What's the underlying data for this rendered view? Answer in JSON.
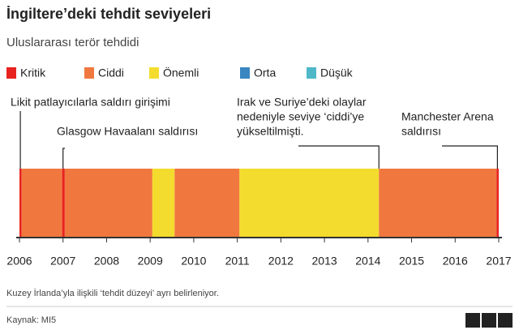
{
  "chart_data": {
    "type": "timeline",
    "title": "İngiltere’deki tehdit seviyeleri",
    "subtitle": "Uluslararası terör tehdidi",
    "levels": [
      {
        "name": "Kritik",
        "color": "#e8231f"
      },
      {
        "name": "Ciddi",
        "color": "#f0783f"
      },
      {
        "name": "Önemli",
        "color": "#f4dc2e"
      },
      {
        "name": "Orta",
        "color": "#3a86c0"
      },
      {
        "name": "Düşük",
        "color": "#4fb8c8"
      }
    ],
    "segments": [
      {
        "level": 0,
        "start": 2006.0,
        "end": 2006.05
      },
      {
        "level": 1,
        "start": 2006.05,
        "end": 2006.98
      },
      {
        "level": 0,
        "start": 2006.98,
        "end": 2007.04
      },
      {
        "level": 1,
        "start": 2007.04,
        "end": 2009.05
      },
      {
        "level": 2,
        "start": 2009.05,
        "end": 2009.56
      },
      {
        "level": 1,
        "start": 2009.56,
        "end": 2011.05
      },
      {
        "level": 2,
        "start": 2011.05,
        "end": 2014.25
      },
      {
        "level": 1,
        "start": 2014.25,
        "end": 2016.95
      },
      {
        "level": 0,
        "start": 2016.95,
        "end": 2017.0
      }
    ],
    "annotations": [
      {
        "x": 2006.02,
        "lines": [
          "Likit patlayıcılarla saldırı girişimi"
        ]
      },
      {
        "x": 2007.0,
        "lines": [
          "Glasgow Havaalanı saldırısı"
        ]
      },
      {
        "x": 2014.25,
        "lines": [
          "Irak ve Suriye’deki olaylar",
          "nedeniyle seviye ‘ciddi’ye",
          "yükseltilmişti."
        ]
      },
      {
        "x": 2016.97,
        "lines": [
          "Manchester Arena",
          "saldırısı"
        ]
      }
    ],
    "xlim": [
      2006,
      2017
    ],
    "xticks": [
      2006,
      2007,
      2008,
      2009,
      2010,
      2011,
      2012,
      2013,
      2014,
      2015,
      2016,
      2017
    ],
    "footnote": "Kuzey İrlanda’yla ilişkili ‘tehdit düzeyi’ ayrı belirleniyor.",
    "source": "Kaynak: MI5",
    "logo": [
      "B",
      "B",
      "C"
    ]
  }
}
